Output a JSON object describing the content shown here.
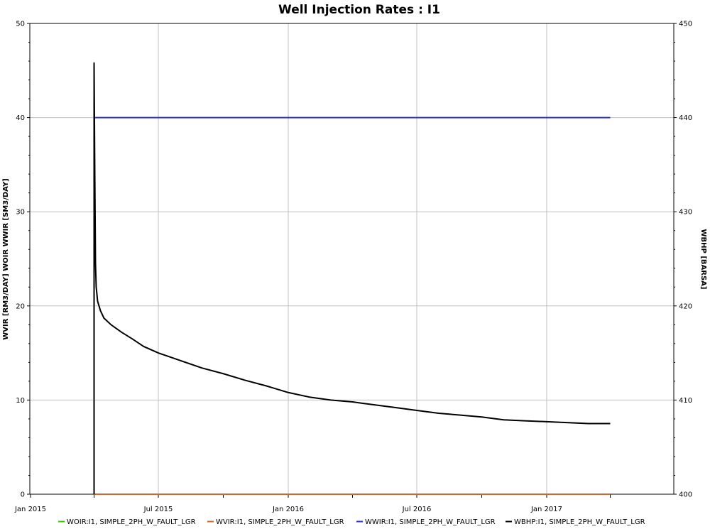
{
  "chart_data": {
    "type": "line",
    "title": "Well Injection Rates : I1",
    "ylabel_left": "WVIR [RM3/DAY] WOIR WWIR [SM3/DAY]",
    "ylabel_right": "WBHP [BARSA]",
    "ylim_left": [
      0,
      50
    ],
    "ylim_right": [
      400,
      450
    ],
    "yticks_left": [
      0,
      10,
      20,
      30,
      40,
      50
    ],
    "yticks_right": [
      400,
      410,
      420,
      430,
      440,
      450
    ],
    "xlim": [
      "2014-12-31",
      "2017-06-30"
    ],
    "xticks": [
      {
        "date": "2015-01-01",
        "label": "Jan 2015"
      },
      {
        "date": "2015-07-01",
        "label": "Jul 2015"
      },
      {
        "date": "2016-01-01",
        "label": "Jan 2016"
      },
      {
        "date": "2016-07-01",
        "label": "Jul 2016"
      },
      {
        "date": "2017-01-01",
        "label": "Jan 2017"
      }
    ],
    "minor_xticks": [
      "2015-04-01",
      "2015-10-01",
      "2016-04-01",
      "2016-10-01",
      "2017-04-01"
    ],
    "grid": true,
    "legend_position": "bottom",
    "series": [
      {
        "name": "WOIR:I1, SIMPLE_2PH_W_FAULT_LGR",
        "color": "#33cc00",
        "axis": "left",
        "points": [
          [
            "2015-04-01",
            0
          ],
          [
            "2017-04-01",
            0
          ]
        ]
      },
      {
        "name": "WVIR:I1, SIMPLE_2PH_W_FAULT_LGR",
        "color": "#cc6633",
        "axis": "left",
        "points": [
          [
            "2015-04-01",
            0
          ],
          [
            "2017-04-01",
            0
          ]
        ]
      },
      {
        "name": "WWIR:I1, SIMPLE_2PH_W_FAULT_LGR",
        "color": "#3333cc",
        "axis": "left",
        "points": [
          [
            "2015-04-01",
            0
          ],
          [
            "2015-04-01",
            40
          ],
          [
            "2017-04-01",
            40
          ]
        ]
      },
      {
        "name": "WBHP:I1, SIMPLE_2PH_W_FAULT_LGR",
        "color": "#000000",
        "axis": "right",
        "points": [
          [
            "2015-04-01",
            400
          ],
          [
            "2015-04-01",
            445.8
          ],
          [
            "2015-04-02",
            434
          ],
          [
            "2015-04-03",
            424.5
          ],
          [
            "2015-04-04",
            422
          ],
          [
            "2015-04-06",
            420.5
          ],
          [
            "2015-04-10",
            419.5
          ],
          [
            "2015-04-15",
            418.7
          ],
          [
            "2015-04-25",
            418
          ],
          [
            "2015-05-10",
            417.2
          ],
          [
            "2015-05-25",
            416.5
          ],
          [
            "2015-06-10",
            415.7
          ],
          [
            "2015-07-01",
            415
          ],
          [
            "2015-08-01",
            414.2
          ],
          [
            "2015-09-01",
            413.4
          ],
          [
            "2015-10-01",
            412.8
          ],
          [
            "2015-11-01",
            412.1
          ],
          [
            "2015-12-01",
            411.5
          ],
          [
            "2016-01-01",
            410.8
          ],
          [
            "2016-02-01",
            410.3
          ],
          [
            "2016-03-01",
            410
          ],
          [
            "2016-04-01",
            409.8
          ],
          [
            "2016-05-01",
            409.5
          ],
          [
            "2016-06-01",
            409.2
          ],
          [
            "2016-07-01",
            408.9
          ],
          [
            "2016-08-01",
            408.6
          ],
          [
            "2016-09-01",
            408.4
          ],
          [
            "2016-10-01",
            408.2
          ],
          [
            "2016-11-01",
            407.9
          ],
          [
            "2016-12-01",
            407.8
          ],
          [
            "2017-01-01",
            407.7
          ],
          [
            "2017-02-01",
            407.6
          ],
          [
            "2017-03-01",
            407.5
          ],
          [
            "2017-04-01",
            407.5
          ]
        ]
      }
    ]
  }
}
